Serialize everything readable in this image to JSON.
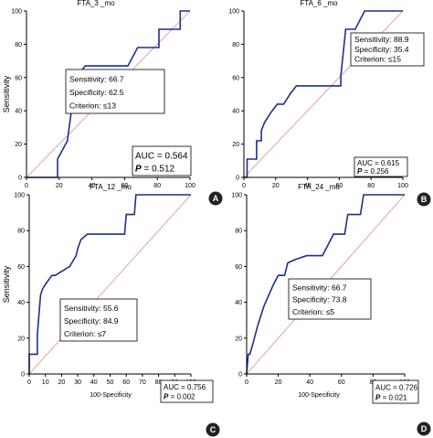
{
  "colors": {
    "roc_line": "#1f2f8a",
    "reference_line": "#e08a8a",
    "axis": "#000000",
    "badge_bg": "#222222"
  },
  "chart_data": [
    {
      "type": "line",
      "panel_label": "A",
      "title": "FTA_3 _mo",
      "xlabel": "",
      "ylabel": "Sensitivity",
      "xlim": [
        0,
        100
      ],
      "ylim": [
        0,
        100
      ],
      "xticks": [
        "0",
        "20",
        "40",
        "60",
        "80",
        "100"
      ],
      "yticks": [
        "0",
        "20",
        "40",
        "60",
        "80",
        "100"
      ],
      "grid": false,
      "series": [
        {
          "x": [
            0,
            19,
            19,
            25,
            28,
            28,
            31,
            31,
            36,
            48,
            56,
            62,
            62,
            68,
            81,
            81,
            88,
            88,
            94,
            94,
            100
          ],
          "y": [
            0,
            0,
            11,
            22,
            44,
            56,
            56,
            61,
            67,
            67,
            67,
            67,
            67,
            78,
            78,
            89,
            89,
            89,
            89,
            100,
            100
          ]
        }
      ],
      "reference_line": [
        [
          0,
          0
        ],
        [
          100,
          100
        ]
      ],
      "criterion_box": {
        "line1": "Sensitivity: 66.7",
        "line2": "Specificity: 62.5",
        "line3": "Criterion: ≤13"
      },
      "auc_box": {
        "line1": "AUC = 0.564",
        "p_symbol": "P",
        "p_value": " = 0.512"
      }
    },
    {
      "type": "line",
      "panel_label": "B",
      "title": "FTA_6 _mo",
      "xlabel": "",
      "ylabel": "",
      "xlim": [
        0,
        100
      ],
      "ylim": [
        0,
        100
      ],
      "xticks": [
        "0",
        "20",
        "40",
        "60",
        "80",
        "100"
      ],
      "yticks": [
        "0",
        "20",
        "40",
        "60",
        "80",
        "100"
      ],
      "grid": false,
      "series": [
        {
          "x": [
            0,
            2,
            2,
            8,
            8,
            11,
            11,
            13,
            17,
            21,
            25,
            29,
            33,
            38,
            41,
            61,
            61,
            64,
            70,
            76,
            100
          ],
          "y": [
            0,
            0,
            11,
            11,
            22,
            22,
            28,
            33,
            39,
            44,
            44,
            50,
            55,
            55,
            55,
            55,
            61,
            89,
            89,
            100,
            100
          ]
        }
      ],
      "reference_line": [
        [
          0,
          0
        ],
        [
          100,
          100
        ]
      ],
      "criterion_box": {
        "line1": "Sensitivity: 88.9",
        "line2": "Specificity: 35.4",
        "line3": "Criterion: ≤15"
      },
      "auc_box": {
        "line1": "AUC = 0.615",
        "p_symbol": "P",
        "p_value": " = 0.256"
      }
    },
    {
      "type": "line",
      "panel_label": "C",
      "title": "FTA_12 _mo",
      "xlabel": "100-Specificity",
      "ylabel": "Sensitivity",
      "xlim": [
        0,
        100
      ],
      "ylim": [
        0,
        100
      ],
      "xticks": [
        "0",
        "10",
        "20",
        "30",
        "40",
        "50",
        "60",
        "70",
        "80",
        "90",
        "100"
      ],
      "yticks": [
        "0",
        "20",
        "40",
        "60",
        "80",
        "100"
      ],
      "grid": false,
      "series": [
        {
          "x": [
            0,
            0,
            2,
            5,
            5,
            7,
            8,
            10,
            14,
            16,
            25,
            29,
            30,
            32,
            36,
            49,
            59,
            60,
            65,
            66,
            100
          ],
          "y": [
            0,
            11,
            11,
            11,
            22,
            44,
            47,
            50,
            55,
            55,
            60,
            66,
            70,
            75,
            78,
            78,
            78,
            89,
            89,
            100,
            100
          ]
        }
      ],
      "reference_line": [
        [
          0,
          0
        ],
        [
          100,
          100
        ]
      ],
      "criterion_box": {
        "line1": "Sensitivity: 55.6",
        "line2": "Specificity: 84.9",
        "line3": "Criterion: ≤7"
      },
      "auc_box": {
        "line1": "AUC = 0.756",
        "p_symbol": "P",
        "p_value": " = 0.002"
      }
    },
    {
      "type": "line",
      "panel_label": "D",
      "title": "FTA_24 _mo",
      "xlabel": "100-Specificity",
      "ylabel": "",
      "xlim": [
        0,
        100
      ],
      "ylim": [
        0,
        100
      ],
      "xticks": [
        "0",
        "20",
        "40",
        "60",
        "80",
        "100"
      ],
      "yticks": [
        "0",
        "20",
        "40",
        "60",
        "80",
        "100"
      ],
      "grid": false,
      "series": [
        {
          "x": [
            0,
            1,
            2,
            4,
            7,
            11,
            14,
            17,
            20,
            24,
            26,
            31,
            38,
            48,
            55,
            62,
            64,
            72,
            74,
            100
          ],
          "y": [
            0,
            11,
            11,
            17,
            27,
            38,
            44,
            50,
            55,
            55,
            62,
            64,
            66,
            66,
            78,
            78,
            89,
            89,
            100,
            100
          ]
        }
      ],
      "reference_line": [
        [
          0,
          0
        ],
        [
          100,
          100
        ]
      ],
      "criterion_box": {
        "line1": "Sensitivity: 66.7",
        "line2": "Specificity: 73.8",
        "line3": "Criterion: ≤5"
      },
      "auc_box": {
        "line1": "AUC = 0.726",
        "p_symbol": "P",
        "p_value": " = 0.021"
      }
    }
  ]
}
